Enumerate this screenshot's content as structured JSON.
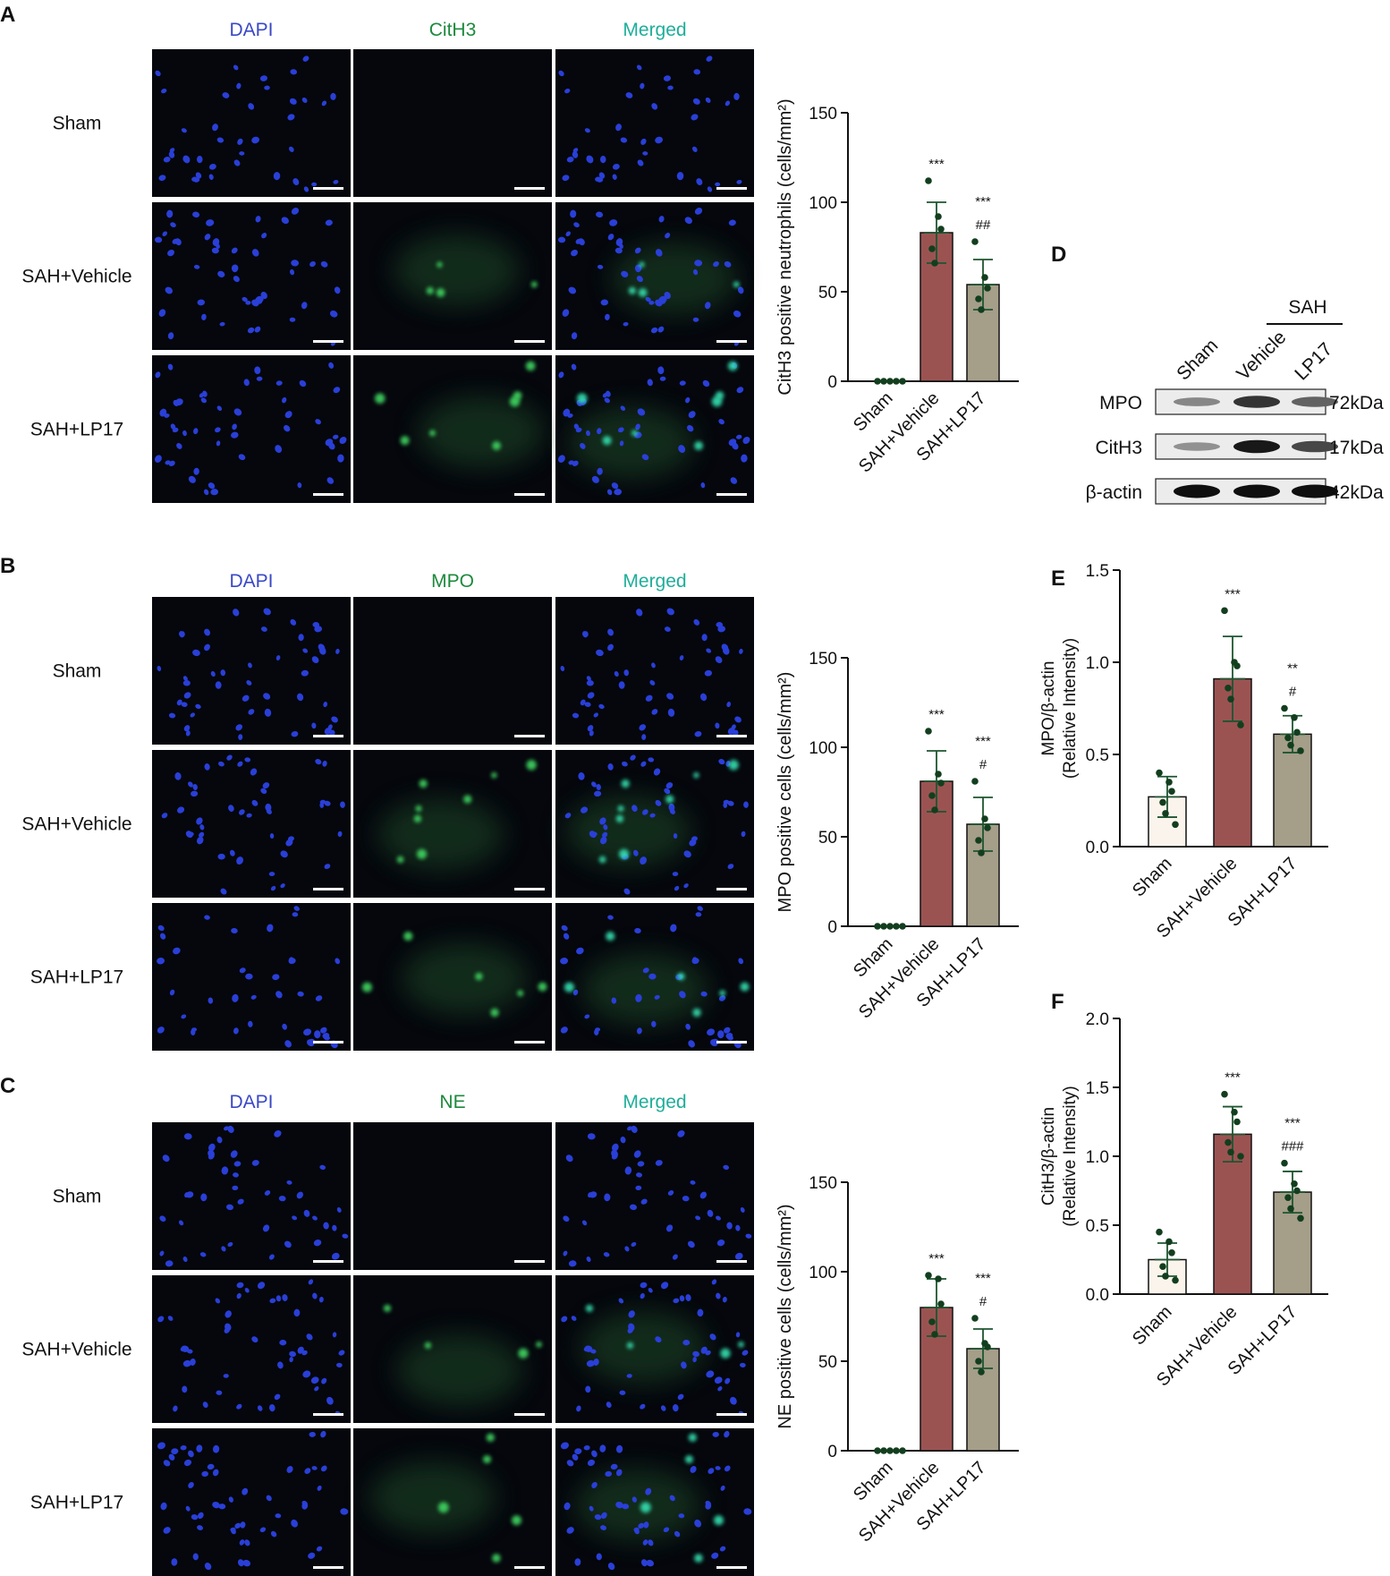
{
  "colors": {
    "dapi": "#3a48c6",
    "green": "#1c8a3c",
    "merged": "#1fae9a",
    "sham_bar": "#fbf4ec",
    "vehicle_bar": "#9b5352",
    "lp17_bar": "#a59e89",
    "dot": "#123e1e",
    "errbar": "#1d5530"
  },
  "panels": [
    {
      "letter": "A",
      "columns": [
        "DAPI",
        "CitH3",
        "Merged"
      ],
      "rows": [
        "Sham",
        "SAH+Vehicle",
        "SAH+LP17"
      ]
    },
    {
      "letter": "B",
      "columns": [
        "DAPI",
        "MPO",
        "Merged"
      ],
      "rows": [
        "Sham",
        "SAH+Vehicle",
        "SAH+LP17"
      ]
    },
    {
      "letter": "C",
      "columns": [
        "DAPI",
        "NE",
        "Merged"
      ],
      "rows": [
        "Sham",
        "SAH+Vehicle",
        "SAH+LP17"
      ]
    }
  ],
  "blot": {
    "letter": "D",
    "group_label": "SAH",
    "lanes": [
      "Sham",
      "Vehicle",
      "LP17"
    ],
    "rows": [
      {
        "protein": "MPO",
        "size": "72kDa",
        "intensity": [
          0.35,
          0.8,
          0.55
        ]
      },
      {
        "protein": "CitH3",
        "size": "17kDa",
        "intensity": [
          0.3,
          0.95,
          0.7
        ]
      },
      {
        "protein": "β-actin",
        "size": "42kDa",
        "intensity": [
          1.0,
          1.0,
          1.0
        ]
      }
    ]
  },
  "chart_data": [
    {
      "panel": "A",
      "type": "bar",
      "categories": [
        "Sham",
        "SAH+Vehicle",
        "SAH+LP17"
      ],
      "ylabel": "CitH3 positive neutrophils (cells/mm²)",
      "ylim": [
        0,
        150
      ],
      "yticks": [
        0,
        50,
        100,
        150
      ],
      "values": [
        0,
        83,
        54
      ],
      "sd": [
        0,
        17,
        14
      ],
      "points": [
        [
          0,
          0,
          0,
          0,
          0
        ],
        [
          112,
          92,
          85,
          74,
          66
        ],
        [
          78,
          58,
          52,
          46,
          40
        ]
      ],
      "annotations": [
        [],
        [
          "***"
        ],
        [
          "***",
          "##"
        ]
      ]
    },
    {
      "panel": "B",
      "type": "bar",
      "categories": [
        "Sham",
        "SAH+Vehicle",
        "SAH+LP17"
      ],
      "ylabel": "MPO positive cells (cells/mm²)",
      "ylim": [
        0,
        150
      ],
      "yticks": [
        0,
        50,
        100,
        150
      ],
      "values": [
        0,
        81,
        57
      ],
      "sd": [
        0,
        17,
        15
      ],
      "points": [
        [
          0,
          0,
          0,
          0,
          0
        ],
        [
          109,
          85,
          80,
          73,
          65
        ],
        [
          81,
          60,
          55,
          48,
          41
        ]
      ],
      "annotations": [
        [],
        [
          "***"
        ],
        [
          "***",
          "#"
        ]
      ]
    },
    {
      "panel": "C",
      "type": "bar",
      "categories": [
        "Sham",
        "SAH+Vehicle",
        "SAH+LP17"
      ],
      "ylabel": "NE positive cells (cells/mm²)",
      "ylim": [
        0,
        150
      ],
      "yticks": [
        0,
        50,
        100,
        150
      ],
      "values": [
        0,
        80,
        57
      ],
      "sd": [
        0,
        16,
        11
      ],
      "points": [
        [
          0,
          0,
          0,
          0,
          0
        ],
        [
          98,
          96,
          82,
          72,
          65
        ],
        [
          74,
          60,
          58,
          50,
          44
        ]
      ],
      "annotations": [
        [],
        [
          "***"
        ],
        [
          "***",
          "#"
        ]
      ]
    },
    {
      "panel": "E",
      "type": "bar",
      "categories": [
        "Sham",
        "SAH+Vehicle",
        "SAH+LP17"
      ],
      "ylabel": "MPO/β-actin (Relative Intensity)",
      "ylim": [
        0,
        1.5
      ],
      "yticks": [
        0.0,
        0.5,
        1.0,
        1.5
      ],
      "values": [
        0.27,
        0.91,
        0.61
      ],
      "sd": [
        0.11,
        0.23,
        0.1
      ],
      "points": [
        [
          0.4,
          0.35,
          0.3,
          0.24,
          0.18,
          0.12
        ],
        [
          1.28,
          1.0,
          0.98,
          0.86,
          0.8,
          0.66
        ],
        [
          0.75,
          0.7,
          0.62,
          0.59,
          0.55,
          0.52
        ]
      ],
      "annotations": [
        [],
        [
          "***"
        ],
        [
          "**",
          "#"
        ]
      ]
    },
    {
      "panel": "F",
      "type": "bar",
      "categories": [
        "Sham",
        "SAH+Vehicle",
        "SAH+LP17"
      ],
      "ylabel": "CitH3/β-actin (Relative Intensity)",
      "ylim": [
        0,
        2.0
      ],
      "yticks": [
        0.0,
        0.5,
        1.0,
        1.5,
        2.0
      ],
      "values": [
        0.25,
        1.16,
        0.74
      ],
      "sd": [
        0.12,
        0.2,
        0.15
      ],
      "points": [
        [
          0.45,
          0.38,
          0.3,
          0.2,
          0.13,
          0.1
        ],
        [
          1.45,
          1.32,
          1.25,
          1.1,
          1.03,
          1.0
        ],
        [
          0.95,
          0.8,
          0.75,
          0.7,
          0.62,
          0.55
        ]
      ],
      "annotations": [
        [],
        [
          "***"
        ],
        [
          "***",
          "###"
        ]
      ]
    }
  ]
}
